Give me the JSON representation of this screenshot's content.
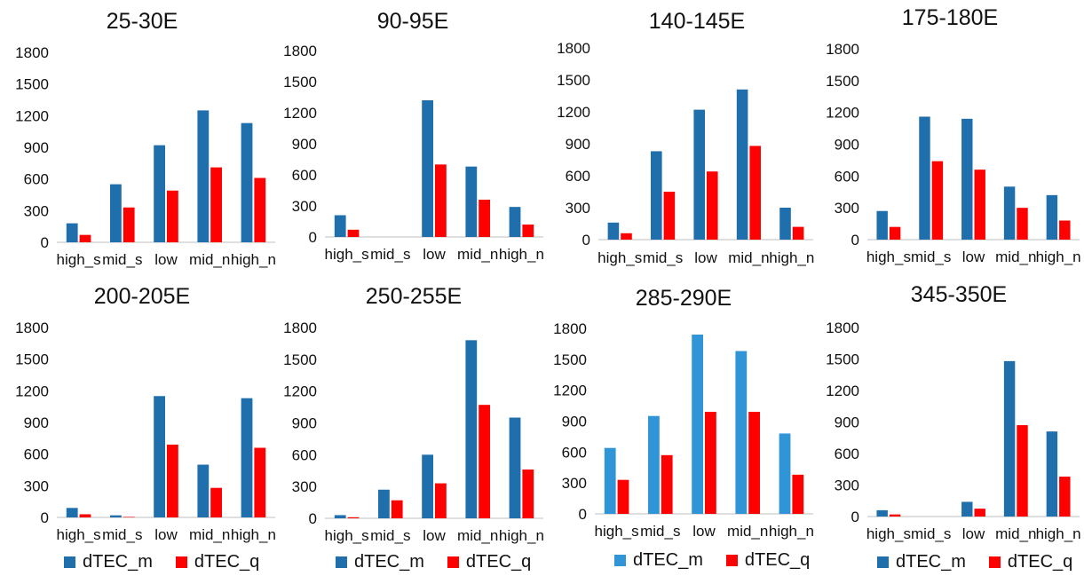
{
  "colors": {
    "dtec_m": "#1f6fad",
    "dtec_m_alt": "#2f95d6",
    "dtec_q": "#ff0000",
    "axis": "#bfbfbf",
    "text": "#111111"
  },
  "legend": {
    "items": [
      "dTEC_m",
      "dTEC_q"
    ]
  },
  "chart_data": [
    {
      "type": "bar",
      "title": "25-30E",
      "categories": [
        "high_s",
        "mid_s",
        "low",
        "mid_n",
        "high_n"
      ],
      "yticks": [
        "0",
        "300",
        "600",
        "900",
        "1200",
        "1500",
        "1800"
      ],
      "ylim": [
        0,
        1800
      ],
      "series": [
        {
          "name": "dTEC_m",
          "values": [
            180,
            550,
            920,
            1250,
            1130
          ]
        },
        {
          "name": "dTEC_q",
          "values": [
            70,
            330,
            490,
            710,
            610
          ]
        }
      ]
    },
    {
      "type": "bar",
      "title": "90-95E",
      "categories": [
        "high_s",
        "mid_s",
        "low",
        "mid_n",
        "high_n"
      ],
      "yticks": [
        "0",
        "300",
        "600",
        "900",
        "1200",
        "1500",
        "1800"
      ],
      "ylim": [
        0,
        1800
      ],
      "series": [
        {
          "name": "dTEC_m",
          "values": [
            210,
            0,
            1320,
            680,
            290
          ]
        },
        {
          "name": "dTEC_q",
          "values": [
            70,
            0,
            700,
            360,
            120
          ]
        }
      ]
    },
    {
      "type": "bar",
      "title": "140-145E",
      "categories": [
        "high_s",
        "mid_s",
        "low",
        "mid_n",
        "high_n"
      ],
      "yticks": [
        "0",
        "300",
        "600",
        "900",
        "1200",
        "1500",
        "1800"
      ],
      "ylim": [
        0,
        1800
      ],
      "series": [
        {
          "name": "dTEC_m",
          "values": [
            160,
            830,
            1220,
            1410,
            300
          ]
        },
        {
          "name": "dTEC_q",
          "values": [
            60,
            450,
            640,
            880,
            120
          ]
        }
      ]
    },
    {
      "type": "bar",
      "title": "175-180E",
      "categories": [
        "high_s",
        "mid_s",
        "low",
        "mid_n",
        "high_n"
      ],
      "yticks": [
        "0",
        "300",
        "600",
        "900",
        "1200",
        "1500",
        "1800"
      ],
      "ylim": [
        0,
        1800
      ],
      "series": [
        {
          "name": "dTEC_m",
          "values": [
            270,
            1160,
            1140,
            500,
            420
          ]
        },
        {
          "name": "dTEC_q",
          "values": [
            120,
            740,
            660,
            300,
            180
          ]
        }
      ]
    },
    {
      "type": "bar",
      "title": "200-205E",
      "categories": [
        "high_s",
        "mid_s",
        "low",
        "mid_n",
        "high_n"
      ],
      "yticks": [
        "0",
        "300",
        "600",
        "900",
        "1200",
        "1500",
        "1800"
      ],
      "ylim": [
        0,
        1800
      ],
      "series": [
        {
          "name": "dTEC_m",
          "values": [
            90,
            20,
            1150,
            500,
            1130
          ]
        },
        {
          "name": "dTEC_q",
          "values": [
            30,
            5,
            690,
            280,
            660
          ]
        }
      ]
    },
    {
      "type": "bar",
      "title": "250-255E",
      "categories": [
        "high_s",
        "mid_s",
        "low",
        "mid_n",
        "high_n"
      ],
      "yticks": [
        "0",
        "300",
        "600",
        "900",
        "1200",
        "1500",
        "1800"
      ],
      "ylim": [
        0,
        1800
      ],
      "series": [
        {
          "name": "dTEC_m",
          "values": [
            30,
            270,
            600,
            1680,
            950
          ]
        },
        {
          "name": "dTEC_q",
          "values": [
            10,
            170,
            330,
            1070,
            460
          ]
        }
      ]
    },
    {
      "type": "bar",
      "title": "285-290E",
      "categories": [
        "high_s",
        "mid_s",
        "low",
        "mid_n",
        "high_n"
      ],
      "yticks": [
        "0",
        "300",
        "600",
        "900",
        "1200",
        "1500",
        "1800"
      ],
      "ylim": [
        0,
        1800
      ],
      "series": [
        {
          "name": "dTEC_m",
          "values": [
            640,
            950,
            1740,
            1580,
            780
          ]
        },
        {
          "name": "dTEC_q",
          "values": [
            330,
            570,
            990,
            990,
            380
          ]
        }
      ]
    },
    {
      "type": "bar",
      "title": "345-350E",
      "categories": [
        "high_s",
        "mid_s",
        "low",
        "mid_n",
        "high_n"
      ],
      "yticks": [
        "0",
        "300",
        "600",
        "900",
        "1200",
        "1500",
        "1800"
      ],
      "ylim": [
        0,
        1800
      ],
      "series": [
        {
          "name": "dTEC_m",
          "values": [
            60,
            0,
            140,
            1480,
            810
          ]
        },
        {
          "name": "dTEC_q",
          "values": [
            20,
            0,
            75,
            870,
            380
          ]
        }
      ]
    }
  ]
}
